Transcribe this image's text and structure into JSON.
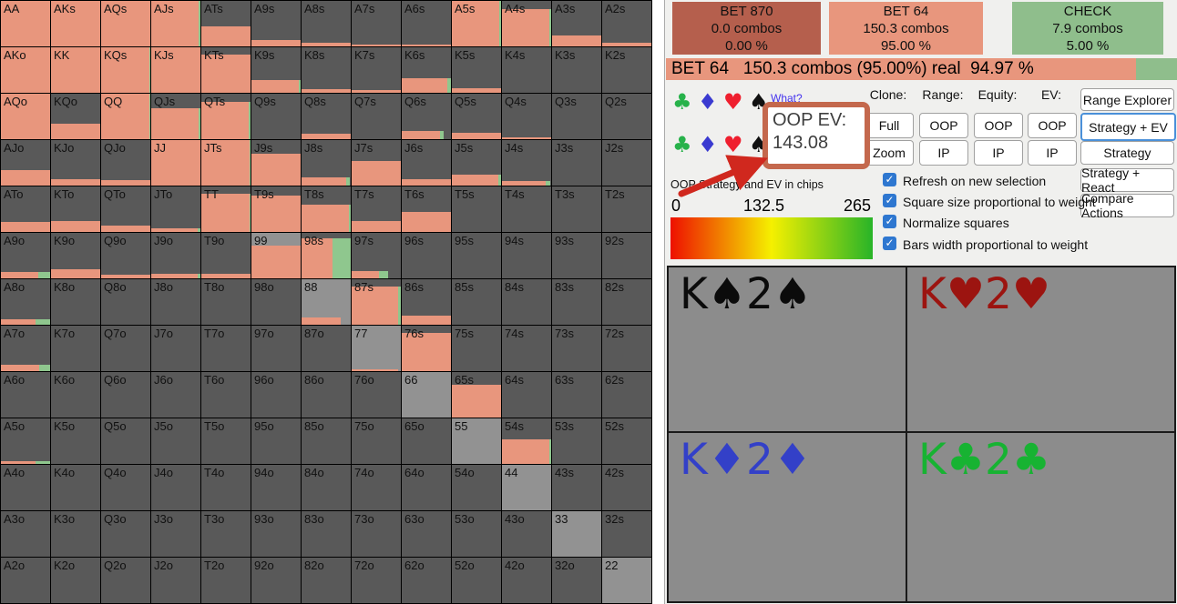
{
  "left_grid": {
    "colors": {
      "not_in_range": "#595959",
      "in_range_gray": "#929292",
      "bet": "#E8967D",
      "check": "#8FC78E"
    },
    "cells": [
      [
        "AA",
        0,
        100,
        100,
        0
      ],
      [
        "AKs",
        0,
        100,
        100,
        0
      ],
      [
        "AQs",
        0,
        100,
        100,
        0
      ],
      [
        "AJs",
        0,
        100,
        97,
        3
      ],
      [
        "ATs",
        0,
        45,
        100,
        0
      ],
      [
        "A9s",
        0,
        14,
        100,
        0
      ],
      [
        "A8s",
        0,
        8,
        100,
        0
      ],
      [
        "A7s",
        0,
        5,
        100,
        0
      ],
      [
        "A6s",
        0,
        5,
        100,
        0
      ],
      [
        "A5s",
        0,
        100,
        97,
        3
      ],
      [
        "A4s",
        0,
        82,
        97,
        3
      ],
      [
        "A3s",
        0,
        25,
        100,
        0
      ],
      [
        "A2s",
        0,
        9,
        100,
        0
      ],
      [
        "AKo",
        0,
        100,
        100,
        0
      ],
      [
        "KK",
        0,
        100,
        100,
        0
      ],
      [
        "KQs",
        0,
        100,
        98,
        2
      ],
      [
        "KJs",
        0,
        100,
        100,
        0
      ],
      [
        "KTs",
        0,
        85,
        100,
        0
      ],
      [
        "K9s",
        0,
        28,
        97,
        3
      ],
      [
        "K8s",
        0,
        8,
        100,
        0
      ],
      [
        "K7s",
        0,
        7,
        100,
        0
      ],
      [
        "K6s",
        0,
        32,
        93,
        7
      ],
      [
        "K5s",
        0,
        10,
        100,
        0
      ],
      [
        "K4s",
        0,
        0,
        0,
        0
      ],
      [
        "K3s",
        0,
        0,
        0,
        0
      ],
      [
        "K2s",
        0,
        0,
        0,
        0
      ],
      [
        "AQo",
        0,
        100,
        100,
        0
      ],
      [
        "KQo",
        0,
        35,
        100,
        0
      ],
      [
        "QQ",
        0,
        100,
        98,
        2
      ],
      [
        "QJs",
        0,
        68,
        97,
        3
      ],
      [
        "QTs",
        0,
        82,
        97,
        3
      ],
      [
        "Q9s",
        0,
        0,
        0,
        0
      ],
      [
        "Q8s",
        0,
        12,
        100,
        0
      ],
      [
        "Q7s",
        0,
        0,
        0,
        0
      ],
      [
        "Q6s",
        0,
        18,
        78,
        8
      ],
      [
        "Q5s",
        0,
        15,
        100,
        0
      ],
      [
        "Q4s",
        0,
        5,
        100,
        0
      ],
      [
        "Q3s",
        0,
        0,
        0,
        0
      ],
      [
        "Q2s",
        0,
        0,
        0,
        0
      ],
      [
        "AJo",
        0,
        35,
        100,
        0
      ],
      [
        "KJo",
        0,
        15,
        100,
        0
      ],
      [
        "QJo",
        0,
        12,
        100,
        0
      ],
      [
        "JJ",
        0,
        100,
        100,
        0
      ],
      [
        "JTs",
        0,
        100,
        98,
        2
      ],
      [
        "J9s",
        0,
        70,
        100,
        0
      ],
      [
        "J8s",
        0,
        18,
        90,
        8
      ],
      [
        "J7s",
        0,
        55,
        100,
        0
      ],
      [
        "J6s",
        0,
        15,
        100,
        0
      ],
      [
        "J5s",
        0,
        25,
        95,
        5
      ],
      [
        "J4s",
        0,
        10,
        88,
        10
      ],
      [
        "J3s",
        0,
        0,
        0,
        0
      ],
      [
        "J2s",
        0,
        0,
        0,
        0
      ],
      [
        "ATo",
        0,
        22,
        100,
        0
      ],
      [
        "KTo",
        0,
        25,
        100,
        0
      ],
      [
        "QTo",
        0,
        15,
        100,
        0
      ],
      [
        "JTo",
        0,
        8,
        95,
        5
      ],
      [
        "TT",
        0,
        85,
        98,
        2
      ],
      [
        "T9s",
        0,
        80,
        100,
        0
      ],
      [
        "T8s",
        0,
        60,
        97,
        3
      ],
      [
        "T7s",
        0,
        25,
        100,
        0
      ],
      [
        "T6s",
        0,
        45,
        100,
        0
      ],
      [
        "T5s",
        0,
        0,
        0,
        0
      ],
      [
        "T4s",
        0,
        0,
        0,
        0
      ],
      [
        "T3s",
        0,
        0,
        0,
        0
      ],
      [
        "T2s",
        0,
        0,
        0,
        0
      ],
      [
        "A9o",
        0,
        15,
        75,
        25
      ],
      [
        "K9o",
        0,
        20,
        100,
        0
      ],
      [
        "Q9o",
        0,
        8,
        100,
        0
      ],
      [
        "J9o",
        0,
        10,
        95,
        5
      ],
      [
        "T9o",
        0,
        10,
        100,
        0
      ],
      [
        "99",
        1,
        72,
        100,
        0
      ],
      [
        "98s",
        0,
        88,
        63,
        37
      ],
      [
        "97s",
        0,
        16,
        55,
        20
      ],
      [
        "96s",
        0,
        0,
        0,
        0
      ],
      [
        "95s",
        0,
        0,
        0,
        0
      ],
      [
        "94s",
        0,
        0,
        0,
        0
      ],
      [
        "93s",
        0,
        0,
        0,
        0
      ],
      [
        "92s",
        0,
        0,
        0,
        0
      ],
      [
        "A8o",
        0,
        12,
        70,
        30
      ],
      [
        "K8o",
        0,
        0,
        0,
        0
      ],
      [
        "Q8o",
        0,
        0,
        0,
        0
      ],
      [
        "J8o",
        0,
        0,
        0,
        0
      ],
      [
        "T8o",
        0,
        0,
        0,
        0
      ],
      [
        "98o",
        0,
        0,
        0,
        0
      ],
      [
        "88",
        1,
        16,
        80,
        0
      ],
      [
        "87s",
        0,
        85,
        95,
        5
      ],
      [
        "86s",
        0,
        20,
        100,
        0
      ],
      [
        "85s",
        0,
        0,
        0,
        0
      ],
      [
        "84s",
        0,
        0,
        0,
        0
      ],
      [
        "83s",
        0,
        0,
        0,
        0
      ],
      [
        "82s",
        0,
        0,
        0,
        0
      ],
      [
        "A7o",
        0,
        15,
        78,
        22
      ],
      [
        "K7o",
        0,
        0,
        0,
        0
      ],
      [
        "Q7o",
        0,
        0,
        0,
        0
      ],
      [
        "J7o",
        0,
        0,
        0,
        0
      ],
      [
        "T7o",
        0,
        0,
        0,
        0
      ],
      [
        "97o",
        0,
        0,
        0,
        0
      ],
      [
        "87o",
        0,
        0,
        0,
        0
      ],
      [
        "77",
        1,
        5,
        95,
        0
      ],
      [
        "76s",
        0,
        85,
        100,
        0
      ],
      [
        "75s",
        0,
        0,
        0,
        0
      ],
      [
        "74s",
        0,
        0,
        0,
        0
      ],
      [
        "73s",
        0,
        0,
        0,
        0
      ],
      [
        "72s",
        0,
        0,
        0,
        0
      ],
      [
        "A6o",
        0,
        0,
        0,
        0
      ],
      [
        "K6o",
        0,
        0,
        0,
        0
      ],
      [
        "Q6o",
        0,
        0,
        0,
        0
      ],
      [
        "J6o",
        0,
        0,
        0,
        0
      ],
      [
        "T6o",
        0,
        0,
        0,
        0
      ],
      [
        "96o",
        0,
        0,
        0,
        0
      ],
      [
        "86o",
        0,
        0,
        0,
        0
      ],
      [
        "76o",
        0,
        0,
        0,
        0
      ],
      [
        "66",
        1,
        0,
        0,
        0
      ],
      [
        "65s",
        0,
        72,
        100,
        0
      ],
      [
        "64s",
        0,
        0,
        0,
        0
      ],
      [
        "63s",
        0,
        0,
        0,
        0
      ],
      [
        "62s",
        0,
        0,
        0,
        0
      ],
      [
        "A5o",
        0,
        6,
        70,
        30
      ],
      [
        "K5o",
        0,
        0,
        0,
        0
      ],
      [
        "Q5o",
        0,
        0,
        0,
        0
      ],
      [
        "J5o",
        0,
        0,
        0,
        0
      ],
      [
        "T5o",
        0,
        0,
        0,
        0
      ],
      [
        "95o",
        0,
        0,
        0,
        0
      ],
      [
        "85o",
        0,
        0,
        0,
        0
      ],
      [
        "75o",
        0,
        0,
        0,
        0
      ],
      [
        "65o",
        0,
        0,
        0,
        0
      ],
      [
        "55",
        1,
        0,
        0,
        0
      ],
      [
        "54s",
        0,
        55,
        96,
        4
      ],
      [
        "53s",
        0,
        0,
        0,
        0
      ],
      [
        "52s",
        0,
        0,
        0,
        0
      ],
      [
        "A4o",
        0,
        0,
        0,
        0
      ],
      [
        "K4o",
        0,
        0,
        0,
        0
      ],
      [
        "Q4o",
        0,
        0,
        0,
        0
      ],
      [
        "J4o",
        0,
        0,
        0,
        0
      ],
      [
        "T4o",
        0,
        0,
        0,
        0
      ],
      [
        "94o",
        0,
        0,
        0,
        0
      ],
      [
        "84o",
        0,
        0,
        0,
        0
      ],
      [
        "74o",
        0,
        0,
        0,
        0
      ],
      [
        "64o",
        0,
        0,
        0,
        0
      ],
      [
        "54o",
        0,
        0,
        0,
        0
      ],
      [
        "44",
        1,
        0,
        0,
        0
      ],
      [
        "43s",
        0,
        0,
        0,
        0
      ],
      [
        "42s",
        0,
        0,
        0,
        0
      ],
      [
        "A3o",
        0,
        0,
        0,
        0
      ],
      [
        "K3o",
        0,
        0,
        0,
        0
      ],
      [
        "Q3o",
        0,
        0,
        0,
        0
      ],
      [
        "J3o",
        0,
        0,
        0,
        0
      ],
      [
        "T3o",
        0,
        0,
        0,
        0
      ],
      [
        "93o",
        0,
        0,
        0,
        0
      ],
      [
        "83o",
        0,
        0,
        0,
        0
      ],
      [
        "73o",
        0,
        0,
        0,
        0
      ],
      [
        "63o",
        0,
        0,
        0,
        0
      ],
      [
        "53o",
        0,
        0,
        0,
        0
      ],
      [
        "43o",
        0,
        0,
        0,
        0
      ],
      [
        "33",
        1,
        0,
        0,
        0
      ],
      [
        "32s",
        0,
        0,
        0,
        0
      ],
      [
        "A2o",
        0,
        0,
        0,
        0
      ],
      [
        "K2o",
        0,
        0,
        0,
        0
      ],
      [
        "Q2o",
        0,
        0,
        0,
        0
      ],
      [
        "J2o",
        0,
        0,
        0,
        0
      ],
      [
        "T2o",
        0,
        0,
        0,
        0
      ],
      [
        "92o",
        0,
        0,
        0,
        0
      ],
      [
        "82o",
        0,
        0,
        0,
        0
      ],
      [
        "72o",
        0,
        0,
        0,
        0
      ],
      [
        "62o",
        0,
        0,
        0,
        0
      ],
      [
        "52o",
        0,
        0,
        0,
        0
      ],
      [
        "42o",
        0,
        0,
        0,
        0
      ],
      [
        "32o",
        0,
        0,
        0,
        0
      ],
      [
        "22",
        1,
        0,
        0,
        0
      ]
    ]
  },
  "right_panel": {
    "action_buttons": [
      {
        "label": "BET 870",
        "combos": "0.0 combos",
        "pct": "0.00 %",
        "color": "#B55F4D"
      },
      {
        "label": "BET 64",
        "combos": "150.3 combos",
        "pct": "95.00 %",
        "color": "#E8967D"
      },
      {
        "label": "CHECK",
        "combos": "7.9 combos",
        "pct": "5.00 %",
        "color": "#8FBE8C"
      }
    ],
    "status_bar": {
      "text": "BET 64   150.3 combos (95.00%) real  94.97 %"
    },
    "suit_rows": [
      [
        {
          "name": "club",
          "glyph": "♣",
          "color": "#27B24A"
        },
        {
          "name": "diamond",
          "glyph": "♦",
          "color": "#3A3AD0"
        },
        {
          "name": "heart",
          "glyph": "♥",
          "color": "#EF1F2E"
        },
        {
          "name": "spade",
          "glyph": "♠",
          "color": "#111111"
        }
      ],
      [
        {
          "name": "club",
          "glyph": "♣",
          "color": "#27B24A"
        },
        {
          "name": "diamond",
          "glyph": "♦",
          "color": "#3A3AD0"
        },
        {
          "name": "heart",
          "glyph": "♥",
          "color": "#EF1F2E"
        },
        {
          "name": "spade",
          "glyph": "♠",
          "color": "#111111"
        }
      ]
    ],
    "what_link": "What?",
    "oop_ev_box": {
      "title": "OOP EV:",
      "value": "143.08",
      "border_color": "#C4684D"
    },
    "strategy_caption": "OOP Strategy and EV in chips",
    "scale": {
      "min": "0",
      "mid": "132.5",
      "max": "265"
    },
    "button_groups": [
      {
        "label": "Clone:",
        "buttons": [
          "Full",
          "Zoom"
        ]
      },
      {
        "label": "Range:",
        "buttons": [
          "OOP",
          "IP"
        ]
      },
      {
        "label": "Equity:",
        "buttons": [
          "OOP",
          "IP"
        ]
      },
      {
        "label": "EV:",
        "buttons": [
          "OOP",
          "IP"
        ]
      }
    ],
    "view_buttons": [
      {
        "label": "Range Explorer",
        "active": false
      },
      {
        "label": "Strategy + EV",
        "active": true
      },
      {
        "label": "Strategy",
        "active": false
      },
      {
        "label": "Strategy + React",
        "active": false
      },
      {
        "label": "Compare Actions",
        "active": false
      }
    ],
    "checkboxes": [
      {
        "label": "Refresh on new selection",
        "checked": true
      },
      {
        "label": "Square size proportional to weight",
        "checked": true
      },
      {
        "label": "Normalize squares",
        "checked": true
      },
      {
        "label": "Bars width proportional to weight",
        "checked": true
      }
    ],
    "combos": [
      {
        "text": "K♠2♠",
        "color": "#0B0B0B"
      },
      {
        "text": "K♥2♥",
        "color": "#9C1410"
      },
      {
        "text": "K♦2♦",
        "color": "#3340C8"
      },
      {
        "text": "K♣2♣",
        "color": "#17B332"
      }
    ]
  }
}
